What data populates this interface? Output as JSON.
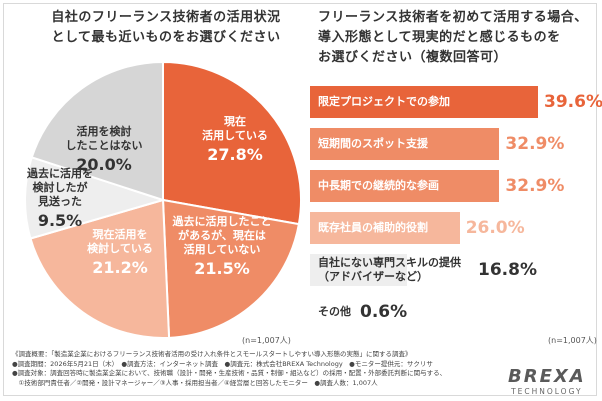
{
  "left_title": "自社のフリーランス技術者の活用状況\nとして最も近いものをお選びください",
  "right_title": "フリーランス技術者を初めて活用する場合、\n導入形態として現実的だと感じるものを\nお選びください（複数回答可）",
  "left_n": "(n=1,007人)",
  "right_n": "(n=1,007人)",
  "chart_data": [
    {
      "type": "pie",
      "title": "自社のフリーランス技術者の活用状況として最も近いものをお選びください",
      "slices": [
        {
          "label": "現在\n活用している",
          "value": 27.8,
          "value_text": "27.8%",
          "color": "#e8643a",
          "text_color": "#ffffff"
        },
        {
          "label": "過去に活用したこと\nがあるが、現在は\n活用していない",
          "value": 21.5,
          "value_text": "21.5%",
          "color": "#ef8c66",
          "text_color": "#ffffff"
        },
        {
          "label": "現在活用を\n検討している",
          "value": 21.2,
          "value_text": "21.2%",
          "color": "#f6b79c",
          "text_color": "#ffffff"
        },
        {
          "label": "過去に活用を\n検討したが\n見送った",
          "value": 9.5,
          "value_text": "9.5%",
          "color": "#eeeeee",
          "text_color": "#333333"
        },
        {
          "label": "活用を検討\nしたことはない",
          "value": 20.0,
          "value_text": "20.0%",
          "color": "#d6d6d6",
          "text_color": "#333333"
        }
      ]
    },
    {
      "type": "bar",
      "orientation": "horizontal",
      "title": "フリーランス技術者を初めて活用する場合、導入形態として現実的だと感じるものをお選びください（複数回答可）",
      "categories": [
        "限定プロジェクトでの参加",
        "短期間のスポット支援",
        "中長期での継続的な参画",
        "既存社員の補助的役割",
        "自社にない専門スキルの提供\n（アドバイザーなど）",
        "その他"
      ],
      "values": [
        39.6,
        32.9,
        32.9,
        26.0,
        16.8,
        0.6
      ],
      "value_texts": [
        "39.6%",
        "32.9%",
        "32.9%",
        "26.0%",
        "16.8%",
        "0.6%"
      ],
      "colors": [
        "#e8643a",
        "#ef8c66",
        "#ef8c66",
        "#f6b79c",
        "#eeeeee",
        "#ffffff"
      ],
      "label_colors": [
        "#ffffff",
        "#ffffff",
        "#ffffff",
        "#ffffff",
        "#333333",
        "#333333"
      ],
      "value_colors": [
        "#e8643a",
        "#ef8c66",
        "#ef8c66",
        "#f6b79c",
        "#333333",
        "#333333"
      ]
    }
  ],
  "footnotes": [
    "《調査概要：「製造業企業におけるフリーランス技術者活用の受け入れ条件とスモールスタートしやすい導入形態の実態」に関する調査》",
    "●調査期間：2026年5月21日（木）　●調査方法：インターネット調査　●調査元：株式会社BREXA Technology　●モニター提供元：サクリサ",
    "●調査対象：調査回答時に製造業企業において、技術職（設計・開発・生産技術・品質・制御・組込など）の採用・配置・外部委託判断に関与する、",
    "　①技術部門責任者／②開発・設計マネージャー／③人事・採用担当者／④経営層と回答したモニター　●調査人数：1,007人"
  ],
  "logo": {
    "brand": "BREXA",
    "sub": "TECHNOLOGY"
  }
}
